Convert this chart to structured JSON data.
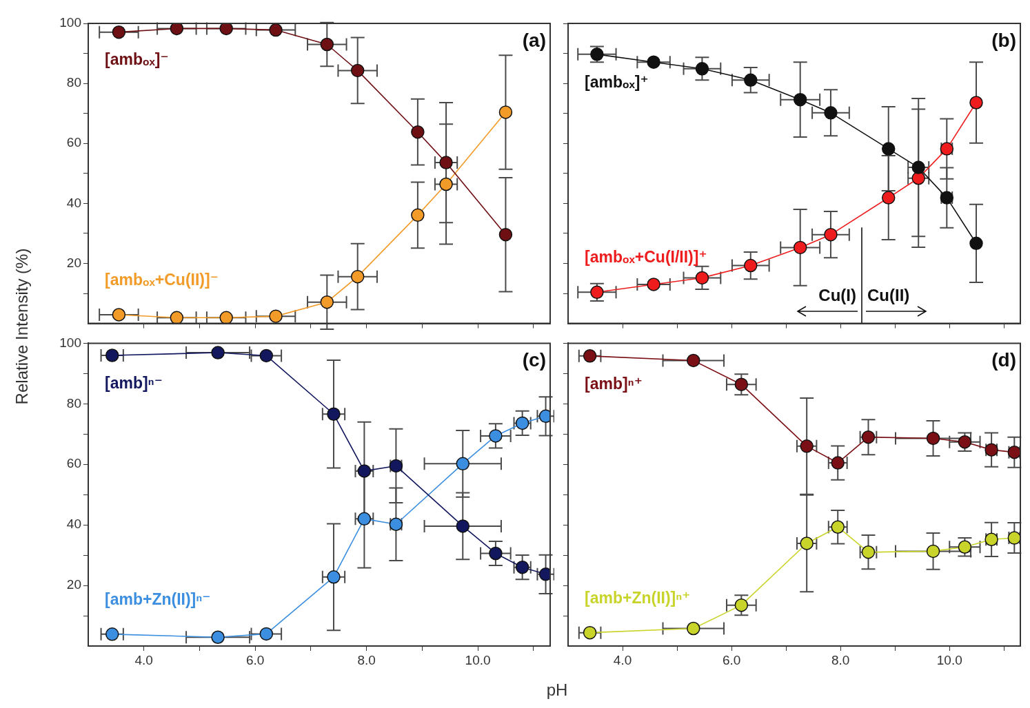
{
  "chart_data": [
    {
      "type": "line",
      "title": "(a)",
      "ylabel": "Relative Intensity (%)",
      "xlim": [
        3,
        11.3
      ],
      "xticks": [
        {
          "value": 4,
          "label": null
        },
        {
          "value": 5,
          "label": null
        },
        {
          "value": 6,
          "label": null
        },
        {
          "value": 7,
          "label": null
        },
        {
          "value": 8,
          "label": null
        },
        {
          "value": 9,
          "label": null
        },
        {
          "value": 10,
          "label": null
        },
        {
          "value": 11,
          "label": null
        }
      ],
      "ylim": [
        0,
        100
      ],
      "yticks": [
        {
          "value": 10,
          "label": null
        },
        20,
        {
          "value": 30,
          "label": null
        },
        40,
        {
          "value": 50,
          "label": null
        },
        60,
        {
          "value": 70,
          "label": null
        },
        80,
        {
          "value": 90,
          "label": null
        },
        100
      ],
      "tick_labels": "y",
      "marker": "circle",
      "line_style": "solid",
      "series": [
        {
          "name": "[ambₒₓ]⁻",
          "color": "#6e0f14",
          "x": [
            3.55,
            4.59,
            5.48,
            6.37,
            7.29,
            7.84,
            8.92,
            9.43,
            10.5
          ],
          "values": [
            97.1,
            98.3,
            98.3,
            97.8,
            93,
            84.3,
            63.8,
            53.6,
            29.6
          ],
          "errors": [
            null,
            null,
            null,
            null,
            7.3,
            11,
            11,
            20,
            19
          ],
          "xerrors": [
            0.35,
            0.35,
            0.35,
            0.35,
            0.35,
            0.35,
            null,
            0.2,
            null
          ]
        },
        {
          "name": "[ambₒₓ+Cu(II)]⁻",
          "color": "#f29b28",
          "x": [
            3.55,
            4.59,
            5.48,
            6.37,
            7.29,
            7.84,
            8.92,
            9.43,
            10.5
          ],
          "values": [
            2.9,
            1.9,
            1.9,
            2.4,
            7.1,
            15.6,
            36.1,
            46.4,
            70.4
          ],
          "errors": [
            null,
            null,
            null,
            null,
            9,
            11,
            11,
            20,
            19
          ],
          "xerrors": [
            0.35,
            0.35,
            0.35,
            0.35,
            0.35,
            0.35,
            null,
            0.2,
            null
          ]
        }
      ]
    },
    {
      "type": "line",
      "title": "(b)",
      "xlim": [
        3,
        11.3
      ],
      "xticks": [
        {
          "value": 4,
          "label": null
        },
        {
          "value": 5,
          "label": null
        },
        {
          "value": 6,
          "label": null
        },
        {
          "value": 7,
          "label": null
        },
        {
          "value": 8,
          "label": null
        },
        {
          "value": 9,
          "label": null
        },
        {
          "value": 10,
          "label": null
        },
        {
          "value": 11,
          "label": null
        }
      ],
      "ylim": [
        0,
        100
      ],
      "yticks": [
        {
          "value": 10,
          "label": null
        },
        {
          "value": 20,
          "label": null
        },
        {
          "value": 30,
          "label": null
        },
        {
          "value": 40,
          "label": null
        },
        {
          "value": 50,
          "label": null
        },
        {
          "value": 60,
          "label": null
        },
        {
          "value": 70,
          "label": null
        },
        {
          "value": 80,
          "label": null
        },
        {
          "value": 90,
          "label": null
        },
        {
          "value": 100,
          "label": null
        }
      ],
      "tick_labels": false,
      "marker": "circle",
      "line_style": "solid",
      "series": [
        {
          "name": "[ambₒₓ]⁺",
          "color": "#111111",
          "x": [
            3.53,
            4.57,
            5.46,
            6.35,
            7.26,
            7.82,
            8.88,
            9.43,
            9.95,
            10.49
          ],
          "values": [
            89.7,
            87.1,
            84.9,
            81.1,
            74.6,
            70.2,
            58.2,
            52,
            41.9,
            26.7
          ],
          "errors": [
            2.6,
            null,
            3.8,
            4.2,
            12.5,
            7.7,
            14,
            23,
            10,
            13
          ],
          "xerrors": [
            0.35,
            0.3,
            0.34,
            0.34,
            0.36,
            0.34,
            null,
            0.19,
            0.1,
            null
          ]
        },
        {
          "name": "[ambₒₓ+Cu(I/II)]⁺",
          "color": "#ee1c1c",
          "x": [
            3.53,
            4.57,
            5.46,
            6.35,
            7.26,
            7.82,
            8.88,
            9.43,
            9.95,
            10.49
          ],
          "values": [
            10.4,
            13,
            15.2,
            19.3,
            25.3,
            29.6,
            41.9,
            48.4,
            58.2,
            73.6
          ],
          "errors": [
            2.9,
            null,
            3.8,
            4.5,
            12.7,
            7.7,
            14,
            23,
            10,
            13.5
          ],
          "xerrors": [
            0.35,
            0.3,
            0.34,
            0.34,
            0.36,
            0.34,
            null,
            0.19,
            0.1,
            null
          ]
        }
      ],
      "ref_lines": [
        {
          "axis": "x",
          "value": 8.39,
          "color": "#000000"
        }
      ],
      "annotations": [
        "Cu(I)",
        "Cu(II)"
      ]
    },
    {
      "type": "line",
      "title": "(c)",
      "xlabel": "pH",
      "xlim": [
        3,
        11.3
      ],
      "xticks": [
        {
          "value": 4,
          "label": "4.0"
        },
        {
          "value": 5,
          "label": null
        },
        {
          "value": 6,
          "label": "6.0"
        },
        {
          "value": 7,
          "label": null
        },
        {
          "value": 8,
          "label": "8.0"
        },
        {
          "value": 9,
          "label": null
        },
        {
          "value": 10,
          "label": "10.0"
        },
        {
          "value": 11,
          "label": null
        }
      ],
      "ylim": [
        0,
        100
      ],
      "yticks": [
        {
          "value": 10,
          "label": null
        },
        20,
        {
          "value": 30,
          "label": null
        },
        40,
        {
          "value": 50,
          "label": null
        },
        60,
        {
          "value": 70,
          "label": null
        },
        80,
        {
          "value": 90,
          "label": null
        },
        100
      ],
      "marker": "circle",
      "line_style": "solid",
      "series": [
        {
          "name": "[amb]ⁿ⁻",
          "color": "#12175e",
          "x": [
            3.43,
            5.33,
            6.2,
            7.41,
            7.96,
            8.53,
            9.73,
            10.32,
            10.8,
            11.22
          ],
          "values": [
            96,
            96.9,
            95.9,
            76.6,
            57.8,
            59.5,
            39.6,
            30.6,
            26,
            23.7
          ],
          "errors": [
            null,
            null,
            null,
            17.8,
            16.2,
            12.2,
            11,
            4,
            4,
            6.4
          ],
          "xerrors": [
            0.2,
            0.57,
            0.27,
            0.2,
            0.16,
            0.1,
            0.69,
            0.27,
            0.15,
            0.15
          ]
        },
        {
          "name": "[amb+Zn(II)]ⁿ⁻",
          "color": "#3b8ee0",
          "x": [
            3.43,
            5.33,
            6.2,
            7.41,
            7.96,
            8.53,
            9.73,
            10.32,
            10.8,
            11.22
          ],
          "values": [
            3.9,
            2.9,
            4,
            22.8,
            42,
            40.2,
            60.2,
            69.4,
            73.6,
            75.9
          ],
          "errors": [
            null,
            null,
            null,
            17.6,
            16.2,
            12,
            11,
            4,
            4,
            6.4
          ],
          "xerrors": [
            0.2,
            0.57,
            0.27,
            0.2,
            0.16,
            0.1,
            0.69,
            0.27,
            0.15,
            0.15
          ]
        }
      ]
    },
    {
      "type": "line",
      "title": "(d)",
      "xlim": [
        3,
        11.3
      ],
      "xticks": [
        {
          "value": 4,
          "label": "4.0"
        },
        {
          "value": 5,
          "label": null
        },
        {
          "value": 6,
          "label": "6.0"
        },
        {
          "value": 7,
          "label": null
        },
        {
          "value": 8,
          "label": "8.0"
        },
        {
          "value": 9,
          "label": null
        },
        {
          "value": 10,
          "label": "10.0"
        },
        {
          "value": 11,
          "label": null
        }
      ],
      "ylim": [
        0,
        100
      ],
      "yticks": [
        {
          "value": 10,
          "label": null
        },
        {
          "value": 20,
          "label": null
        },
        {
          "value": 30,
          "label": null
        },
        {
          "value": 40,
          "label": null
        },
        {
          "value": 50,
          "label": null
        },
        {
          "value": 60,
          "label": null
        },
        {
          "value": 70,
          "label": null
        },
        {
          "value": 80,
          "label": null
        },
        {
          "value": 90,
          "label": null
        },
        {
          "value": 100,
          "label": null
        }
      ],
      "tick_labels": "x",
      "marker": "circle",
      "line_style": "solid",
      "series": [
        {
          "name": "[amb]ⁿ⁺",
          "color": "#7a1015",
          "x": [
            3.4,
            5.3,
            6.18,
            7.38,
            7.95,
            8.51,
            9.7,
            10.28,
            10.77,
            11.19
          ],
          "values": [
            95.8,
            94.3,
            86.4,
            66,
            60.5,
            69,
            68.6,
            67.4,
            64.8,
            64
          ],
          "errors": [
            null,
            null,
            3.4,
            15.9,
            5.6,
            5.8,
            5.8,
            3,
            5.6,
            5
          ],
          "xerrors": [
            0.2,
            0.56,
            0.27,
            0.18,
            0.17,
            0.15,
            0.69,
            0.28,
            0.1,
            0.1
          ]
        },
        {
          "name": "[amb+Zn(II)]ⁿ⁺",
          "color": "#c8d42a",
          "x": [
            3.4,
            5.3,
            6.18,
            7.38,
            7.95,
            8.51,
            9.7,
            10.28,
            10.77,
            11.19
          ],
          "values": [
            4.4,
            5.8,
            13.5,
            33.9,
            39.3,
            31,
            31.3,
            32.7,
            35.2,
            35.7
          ],
          "errors": [
            null,
            null,
            3.3,
            16,
            5.5,
            5.6,
            6,
            3,
            5.6,
            5
          ],
          "xerrors": [
            0.2,
            0.56,
            0.27,
            0.18,
            0.17,
            0.15,
            0.69,
            0.28,
            0.1,
            0.1
          ]
        }
      ]
    }
  ]
}
